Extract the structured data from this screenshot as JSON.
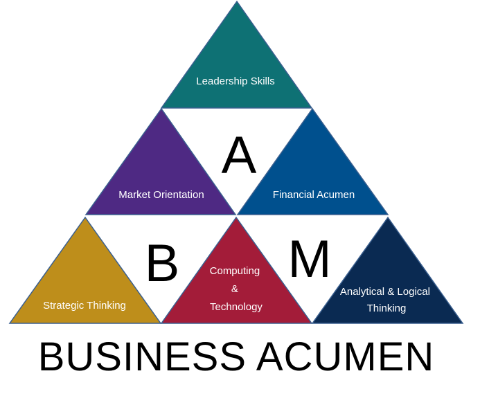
{
  "diagram": {
    "title": "BUSINESS ACUMEN",
    "letters": [
      "A",
      "B",
      "M"
    ],
    "triangles": [
      {
        "label": [
          "Leadership Skills"
        ],
        "color": "#0e7174"
      },
      {
        "label": [
          "Market Orientation"
        ],
        "color": "#4e2983"
      },
      {
        "label": [
          "Financial Acumen"
        ],
        "color": "#00508e"
      },
      {
        "label": [
          "Strategic Thinking"
        ],
        "color": "#be8e1b"
      },
      {
        "label": [
          "Computing",
          "&",
          "Technology"
        ],
        "color": "#a31c39"
      },
      {
        "label": [
          "Analytical & Logical",
          "Thinking"
        ],
        "color": "#0a2a52"
      }
    ]
  }
}
